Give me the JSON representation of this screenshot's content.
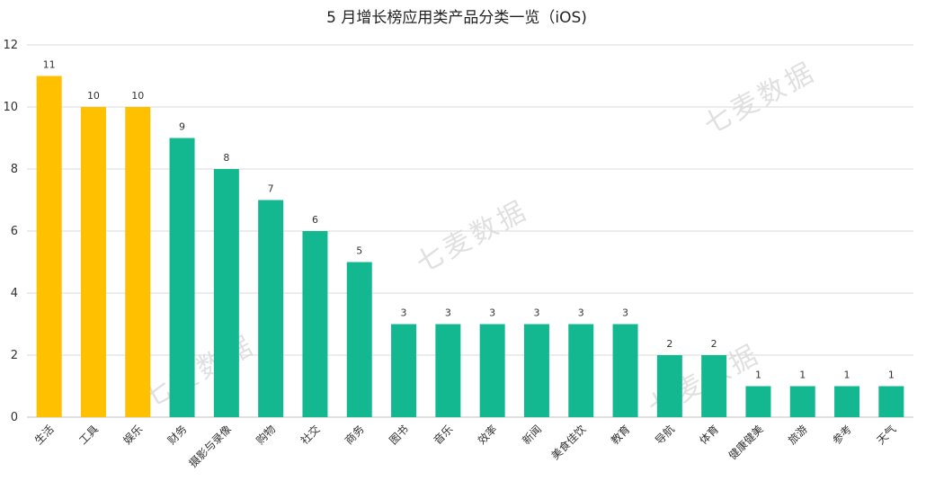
{
  "chart_data": {
    "type": "bar",
    "title": "5 月增长榜应用类产品分类一览（iOS)",
    "xlabel": "",
    "ylabel": "",
    "ylim": [
      0,
      12
    ],
    "yticks": [
      0,
      2,
      4,
      6,
      8,
      10,
      12
    ],
    "grid": true,
    "categories": [
      "生活",
      "工具",
      "娱乐",
      "财务",
      "摄影与录像",
      "购物",
      "社交",
      "商务",
      "图书",
      "音乐",
      "效率",
      "新闻",
      "美食佳饮",
      "教育",
      "导航",
      "体育",
      "健康健美",
      "旅游",
      "参考",
      "天气"
    ],
    "values": [
      11,
      10,
      10,
      9,
      8,
      7,
      6,
      5,
      3,
      3,
      3,
      3,
      3,
      3,
      2,
      2,
      1,
      1,
      1,
      1
    ],
    "bar_colors": [
      "#FFC000",
      "#FFC000",
      "#FFC000",
      "#14B890",
      "#14B890",
      "#14B890",
      "#14B890",
      "#14B890",
      "#14B890",
      "#14B890",
      "#14B890",
      "#14B890",
      "#14B890",
      "#14B890",
      "#14B890",
      "#14B890",
      "#14B890",
      "#14B890",
      "#14B890",
      "#14B890"
    ],
    "watermark": "七麦数据"
  }
}
